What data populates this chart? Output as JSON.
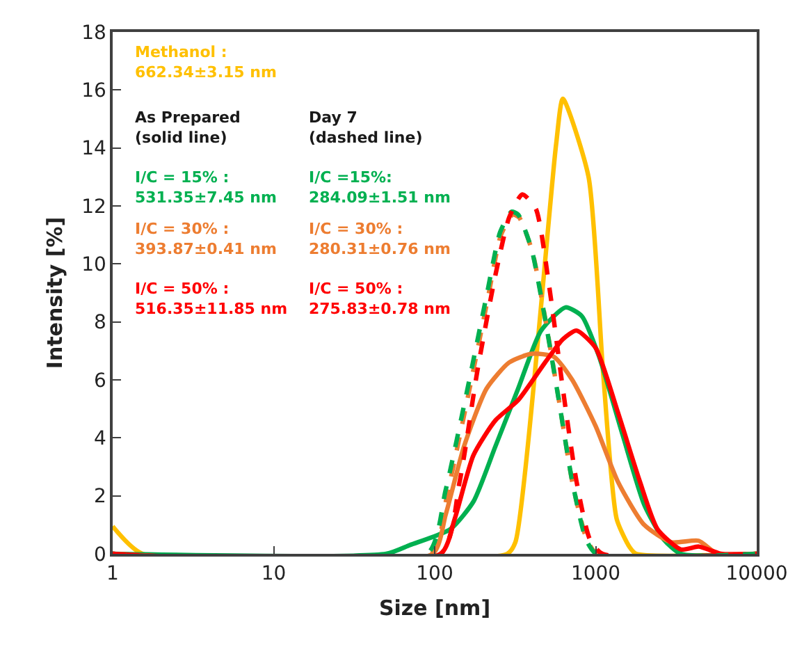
{
  "chart_data": {
    "type": "line",
    "xlabel": "Size [nm]",
    "ylabel": "Intensity [%]",
    "log": "x",
    "marker": "none",
    "xlim": [
      1,
      10000
    ],
    "xticks": [
      1,
      10,
      100,
      1000,
      10000
    ],
    "ylim": [
      0,
      18
    ],
    "yticks": [
      0,
      2,
      4,
      6,
      8,
      10,
      12,
      14,
      16,
      18
    ],
    "series": [
      {
        "color": "#ffc000",
        "line_style": "solid",
        "x": [
          1,
          1.53,
          282,
          317,
          567,
          625,
          903,
          1110,
          1350,
          1620,
          1780,
          10000
        ],
        "values": [
          0.95,
          0,
          0,
          0.4,
          14.1,
          15.7,
          13.0,
          6.3,
          1.2,
          0.24,
          0,
          0
        ]
      },
      {
        "color": "#00b050",
        "line_style": "solid",
        "x": [
          1,
          50,
          70,
          125,
          174,
          238,
          330,
          458,
          650,
          820,
          1050,
          1470,
          2000,
          2640,
          3380,
          10000
        ],
        "values": [
          0,
          0,
          0.3,
          0.85,
          1.8,
          3.7,
          5.7,
          7.7,
          8.5,
          8.2,
          6.8,
          4.1,
          1.7,
          0.5,
          0,
          0
        ]
      },
      {
        "color": "#ed7d31",
        "line_style": "solid",
        "x": [
          1,
          97,
          117,
          152,
          210,
          290,
          400,
          550,
          715,
          1000,
          1370,
          2000,
          2950,
          4360,
          5700,
          10000
        ],
        "values": [
          0,
          0,
          1.35,
          3.7,
          5.7,
          6.6,
          6.9,
          6.8,
          6.0,
          4.4,
          2.5,
          1.0,
          0.4,
          0.45,
          0,
          0
        ]
      },
      {
        "color": "#ff0000",
        "line_style": "solid",
        "x": [
          1,
          109,
          133,
          174,
          238,
          330,
          485,
          625,
          760,
          1000,
          1370,
          1880,
          2420,
          3380,
          4360,
          5300,
          6000,
          10000
        ],
        "values": [
          0,
          0,
          1.2,
          3.4,
          4.6,
          5.3,
          6.6,
          7.4,
          7.7,
          7.1,
          4.9,
          2.5,
          0.85,
          0.15,
          0.25,
          0.1,
          0,
          0
        ]
      },
      {
        "color": "#ed7d31",
        "line_style": "dashed",
        "x": [
          1,
          95,
          120,
          162,
          212,
          258,
          305,
          335,
          405,
          490,
          595,
          720,
          880,
          1020,
          10000
        ],
        "values": [
          0,
          0,
          2.1,
          5.5,
          8.7,
          11.0,
          11.7,
          11.6,
          10.4,
          8.0,
          5.2,
          2.4,
          0.5,
          0,
          0
        ]
      },
      {
        "color": "#00b050",
        "line_style": "dashed",
        "x": [
          1,
          90,
          117,
          160,
          210,
          255,
          300,
          330,
          400,
          485,
          590,
          715,
          870,
          1010,
          10000
        ],
        "values": [
          0,
          0,
          2.2,
          5.7,
          8.9,
          11.1,
          11.8,
          11.7,
          10.5,
          8.1,
          5.3,
          2.5,
          0.5,
          0,
          0
        ]
      },
      {
        "color": "#ff0000",
        "line_style": "dashed",
        "x": [
          1,
          109,
          143,
          184,
          238,
          290,
          350,
          425,
          515,
          625,
          760,
          920,
          1100,
          10000
        ],
        "values": [
          0,
          0,
          2.5,
          6.3,
          9.6,
          11.6,
          12.4,
          11.9,
          9.2,
          5.7,
          2.5,
          0.5,
          0,
          0
        ]
      }
    ],
    "annotations": [
      "Methanol :\n662.34±3.15 nm",
      "As Prepared\n(solid line)",
      "Day 7\n(dashed line)",
      "I/C = 15% :\n531.35±7.45 nm",
      "I/C = 30% :\n393.87±0.41 nm",
      "I/C = 50% :\n516.35±11.85 nm",
      "I/C =15%:\n284.09±1.51 nm",
      "I/C = 30% :\n280.31±0.76 nm",
      "I/C = 50% :\n275.83±0.78 nm"
    ]
  }
}
